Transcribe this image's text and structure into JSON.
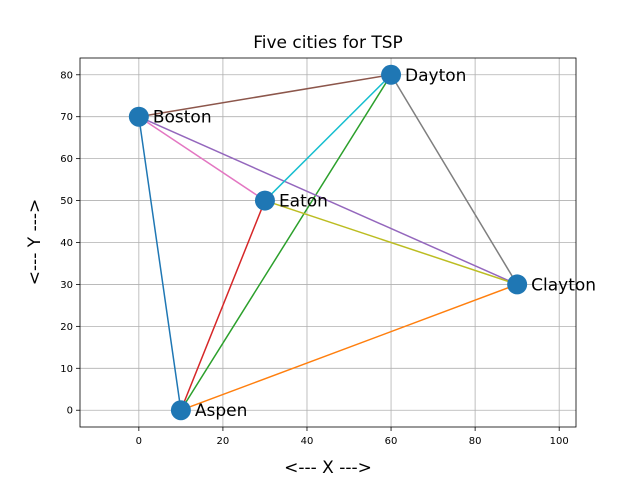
{
  "chart_data": {
    "type": "scatter",
    "title": "Five cities for TSP",
    "xlabel": "<--- X --->",
    "ylabel": "<--- Y --->",
    "xlim": [
      -14,
      104
    ],
    "ylim": [
      -4,
      84
    ],
    "xticks": [
      0,
      20,
      40,
      60,
      80,
      100
    ],
    "yticks": [
      0,
      10,
      20,
      30,
      40,
      50,
      60,
      70,
      80
    ],
    "grid": true,
    "legend": "none",
    "point_color": "#1f77b4",
    "cities": [
      {
        "name": "Aspen",
        "x": 10,
        "y": 0
      },
      {
        "name": "Boston",
        "x": 0,
        "y": 70
      },
      {
        "name": "Clayton",
        "x": 90,
        "y": 30
      },
      {
        "name": "Dayton",
        "x": 60,
        "y": 80
      },
      {
        "name": "Eaton",
        "x": 30,
        "y": 50
      }
    ],
    "edges": [
      {
        "from": "Aspen",
        "to": "Boston",
        "color": "#1f77b4"
      },
      {
        "from": "Aspen",
        "to": "Clayton",
        "color": "#ff7f0e"
      },
      {
        "from": "Aspen",
        "to": "Dayton",
        "color": "#2ca02c"
      },
      {
        "from": "Aspen",
        "to": "Eaton",
        "color": "#d62728"
      },
      {
        "from": "Boston",
        "to": "Clayton",
        "color": "#9467bd"
      },
      {
        "from": "Boston",
        "to": "Dayton",
        "color": "#8c564b"
      },
      {
        "from": "Boston",
        "to": "Eaton",
        "color": "#e377c2"
      },
      {
        "from": "Clayton",
        "to": "Dayton",
        "color": "#7f7f7f"
      },
      {
        "from": "Clayton",
        "to": "Eaton",
        "color": "#bcbd22"
      },
      {
        "from": "Dayton",
        "to": "Eaton",
        "color": "#17becf"
      }
    ]
  }
}
